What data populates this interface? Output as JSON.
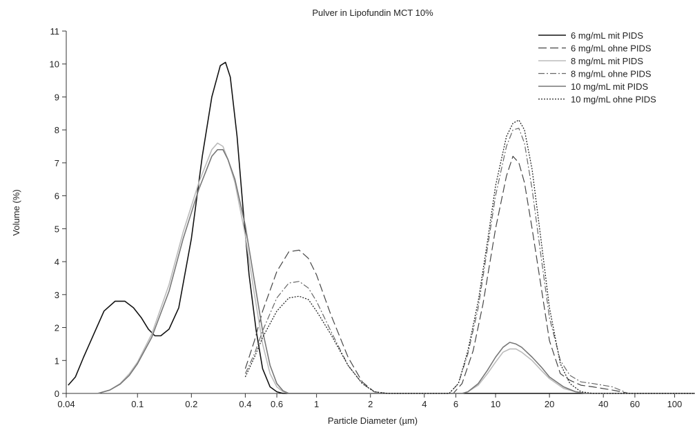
{
  "chart_data": {
    "type": "line",
    "title": "Pulver in Lipofundin MCT 10%",
    "xlabel": "Particle Diameter (µm)",
    "ylabel": "Volume (%)",
    "xscale": "log",
    "xlim": [
      0.04,
      130
    ],
    "ylim": [
      0,
      11
    ],
    "grid": false,
    "legend_position": "top-right",
    "x_ticks": [
      {
        "v": 0.04,
        "label": "0.04"
      },
      {
        "v": 0.1,
        "label": "0.1"
      },
      {
        "v": 0.2,
        "label": "0.2"
      },
      {
        "v": 0.4,
        "label": "0.4"
      },
      {
        "v": 0.6,
        "label": "0.6"
      },
      {
        "v": 1,
        "label": "1"
      },
      {
        "v": 2,
        "label": "2"
      },
      {
        "v": 4,
        "label": "4"
      },
      {
        "v": 6,
        "label": "6"
      },
      {
        "v": 10,
        "label": "10"
      },
      {
        "v": 20,
        "label": "20"
      },
      {
        "v": 40,
        "label": "40"
      },
      {
        "v": 60,
        "label": "60"
      },
      {
        "v": 100,
        "label": "100"
      }
    ],
    "y_ticks": [
      0,
      1,
      2,
      3,
      4,
      5,
      6,
      7,
      8,
      9,
      10,
      11
    ],
    "series": [
      {
        "name": "6 mg/mL mit PIDS",
        "color": "#111111",
        "dash": "",
        "width": 1.6,
        "x": [
          0.041,
          0.045,
          0.05,
          0.057,
          0.065,
          0.075,
          0.085,
          0.095,
          0.105,
          0.115,
          0.125,
          0.135,
          0.15,
          0.17,
          0.2,
          0.23,
          0.26,
          0.29,
          0.31,
          0.33,
          0.36,
          0.39,
          0.42,
          0.46,
          0.5,
          0.55,
          0.6,
          0.65,
          0.7,
          1,
          2,
          130
        ],
        "y": [
          0.25,
          0.5,
          1.1,
          1.8,
          2.5,
          2.8,
          2.8,
          2.6,
          2.3,
          1.95,
          1.75,
          1.75,
          1.95,
          2.6,
          4.7,
          7.2,
          9.0,
          9.95,
          10.05,
          9.6,
          7.8,
          5.5,
          3.6,
          1.9,
          0.75,
          0.2,
          0.05,
          0.0,
          0.0,
          0.0,
          0.0,
          0.0
        ]
      },
      {
        "name": "6 mg/mL ohne PIDS",
        "color": "#444444",
        "dash": "12,5",
        "width": 1.2,
        "x": [
          0.4,
          0.45,
          0.5,
          0.6,
          0.7,
          0.8,
          0.9,
          1.0,
          1.2,
          1.5,
          1.8,
          2.1,
          2.5,
          5.8,
          6.5,
          7.5,
          8.5,
          10,
          11.5,
          12.5,
          13.5,
          14.5,
          16,
          18,
          20,
          23,
          26,
          30,
          35,
          45,
          56,
          130
        ],
        "y": [
          0.75,
          1.6,
          2.5,
          3.7,
          4.3,
          4.35,
          4.1,
          3.6,
          2.4,
          1.1,
          0.35,
          0.05,
          0.0,
          0.0,
          0.3,
          1.3,
          2.7,
          5.0,
          6.6,
          7.2,
          7.0,
          6.4,
          5.0,
          3.2,
          1.6,
          0.6,
          0.4,
          0.25,
          0.2,
          0.1,
          0.0,
          0.0
        ]
      },
      {
        "name": "8 mg/mL mit PIDS",
        "color": "#bbbbbb",
        "dash": "",
        "width": 1.6,
        "x": [
          0.06,
          0.07,
          0.08,
          0.09,
          0.1,
          0.12,
          0.15,
          0.18,
          0.22,
          0.26,
          0.28,
          0.3,
          0.32,
          0.35,
          0.4,
          0.45,
          0.5,
          0.55,
          0.6,
          0.65,
          0.7,
          1,
          6.5,
          7,
          8,
          9,
          10,
          11,
          12,
          13,
          14,
          16,
          18,
          20,
          24,
          28,
          32,
          130
        ],
        "y": [
          0.0,
          0.1,
          0.3,
          0.6,
          0.95,
          1.8,
          3.3,
          4.9,
          6.4,
          7.4,
          7.6,
          7.5,
          7.1,
          6.4,
          4.8,
          3.0,
          1.5,
          0.6,
          0.2,
          0.05,
          0.0,
          0.0,
          0.0,
          0.05,
          0.25,
          0.6,
          0.95,
          1.25,
          1.35,
          1.35,
          1.25,
          1.0,
          0.7,
          0.45,
          0.15,
          0.05,
          0.0,
          0.0
        ]
      },
      {
        "name": "8 mg/mL ohne PIDS",
        "color": "#666666",
        "dash": "9,3,2,3",
        "width": 1.2,
        "x": [
          0.4,
          0.45,
          0.5,
          0.6,
          0.7,
          0.8,
          0.9,
          1.0,
          1.2,
          1.5,
          1.8,
          2.1,
          2.5,
          5.5,
          6.2,
          7,
          8,
          9,
          10,
          11.5,
          12.5,
          13.5,
          14.5,
          16,
          18,
          20,
          23,
          26,
          30,
          35,
          45,
          55,
          130
        ],
        "y": [
          0.6,
          1.2,
          1.9,
          2.9,
          3.35,
          3.4,
          3.2,
          2.8,
          1.9,
          0.85,
          0.3,
          0.05,
          0.0,
          0.0,
          0.3,
          1.2,
          2.6,
          4.4,
          6.0,
          7.5,
          8.0,
          8.05,
          7.6,
          6.2,
          4.1,
          2.3,
          1.0,
          0.55,
          0.35,
          0.3,
          0.2,
          0.0,
          0.0
        ]
      },
      {
        "name": "10 mg/mL mit PIDS",
        "color": "#777777",
        "dash": "",
        "width": 1.6,
        "x": [
          0.06,
          0.07,
          0.08,
          0.09,
          0.1,
          0.12,
          0.15,
          0.18,
          0.22,
          0.26,
          0.28,
          0.3,
          0.32,
          0.35,
          0.4,
          0.45,
          0.5,
          0.55,
          0.6,
          0.65,
          0.7,
          1,
          6.5,
          7,
          8,
          9,
          10,
          11,
          12,
          13,
          14,
          16,
          18,
          20,
          24,
          28,
          32,
          130
        ],
        "y": [
          0.0,
          0.1,
          0.28,
          0.55,
          0.9,
          1.7,
          3.1,
          4.7,
          6.2,
          7.2,
          7.4,
          7.4,
          7.1,
          6.5,
          5.1,
          3.4,
          1.9,
          0.85,
          0.3,
          0.08,
          0.0,
          0.0,
          0.0,
          0.05,
          0.3,
          0.7,
          1.1,
          1.4,
          1.55,
          1.5,
          1.4,
          1.1,
          0.8,
          0.5,
          0.2,
          0.05,
          0.0,
          0.0
        ]
      },
      {
        "name": "10 mg/mL ohne PIDS",
        "color": "#222222",
        "dash": "2,2",
        "width": 1.3,
        "x": [
          0.4,
          0.45,
          0.5,
          0.6,
          0.7,
          0.8,
          0.9,
          1.0,
          1.2,
          1.5,
          1.8,
          2.1,
          2.5,
          5.5,
          6.2,
          7,
          8,
          9,
          10,
          11.5,
          12.5,
          13.5,
          14.5,
          16,
          18,
          20,
          23,
          26,
          30,
          35,
          45,
          130
        ],
        "y": [
          0.5,
          1.1,
          1.7,
          2.5,
          2.9,
          2.95,
          2.85,
          2.5,
          1.8,
          0.85,
          0.3,
          0.05,
          0.0,
          0.0,
          0.3,
          1.3,
          2.8,
          4.6,
          6.3,
          7.8,
          8.2,
          8.3,
          8.0,
          6.8,
          4.6,
          2.6,
          0.9,
          0.3,
          0.05,
          0.0,
          0.0,
          0.0
        ]
      }
    ]
  }
}
